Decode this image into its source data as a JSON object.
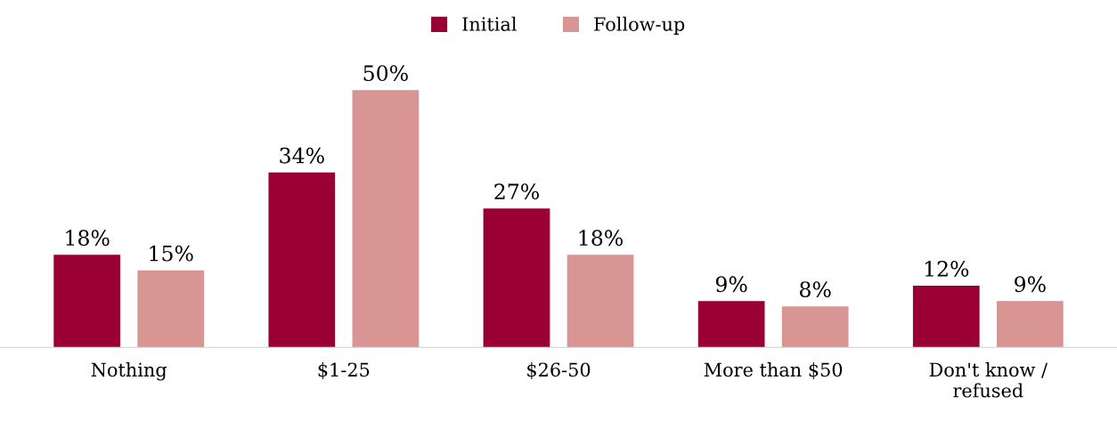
{
  "chart_data": {
    "type": "bar",
    "categories": [
      "Nothing",
      "$1-25",
      "$26-50",
      "More than $50",
      "Don't know /\nrefused"
    ],
    "series": [
      {
        "name": "Initial",
        "color": "#9b0034",
        "values": [
          18,
          34,
          27,
          9,
          12
        ],
        "value_labels": [
          "18%",
          "34%",
          "27%",
          "9%",
          "12%"
        ]
      },
      {
        "name": "Follow-up",
        "color": "#d99594",
        "values": [
          15,
          50,
          18,
          8,
          9
        ],
        "value_labels": [
          "15%",
          "50%",
          "18%",
          "8%",
          "9%"
        ]
      }
    ],
    "legend": "top",
    "grid": false,
    "tick_labels": "x"
  }
}
